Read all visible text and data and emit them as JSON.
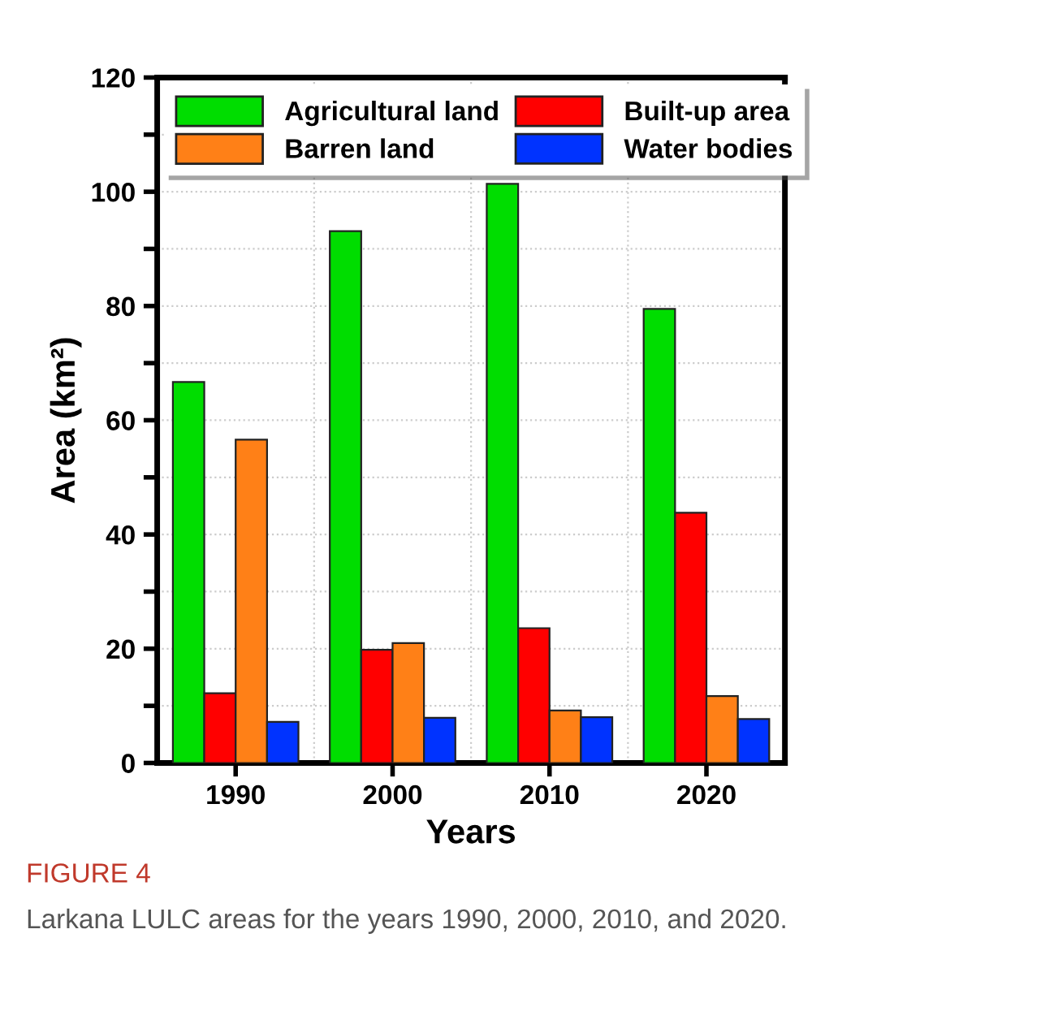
{
  "chart_data": {
    "type": "bar",
    "categories": [
      "1990",
      "2000",
      "2010",
      "2020"
    ],
    "xlabel": "Years",
    "ylabel": "Area (km²)",
    "series": [
      {
        "name": "Agricultural land",
        "color": "#00dd00",
        "values": [
          66.7,
          93.1,
          101.4,
          79.5
        ]
      },
      {
        "name": "Built-up area",
        "color": "#ff0000",
        "values": [
          12.2,
          19.8,
          23.6,
          43.8
        ]
      },
      {
        "name": "Barren land",
        "color": "#ff8017",
        "values": [
          56.6,
          21.0,
          9.2,
          11.7
        ]
      },
      {
        "name": "Water bodies",
        "color": "#0033ff",
        "values": [
          7.2,
          7.9,
          8.0,
          7.7
        ]
      }
    ],
    "ylim": [
      0,
      120
    ],
    "yticks": [
      0,
      {
        "value": 10,
        "label": null
      },
      20,
      {
        "value": 30,
        "label": null
      },
      40,
      {
        "value": 50,
        "label": null
      },
      60,
      {
        "value": 70,
        "label": null
      },
      80,
      {
        "value": 90,
        "label": null
      },
      100,
      {
        "value": 110,
        "label": null
      },
      120
    ],
    "grid": true,
    "legend": "top left",
    "annotations": [
      "FIGURE 4",
      "Larkana LULC areas for the years 1990, 2000, 2010, and 2020."
    ]
  }
}
